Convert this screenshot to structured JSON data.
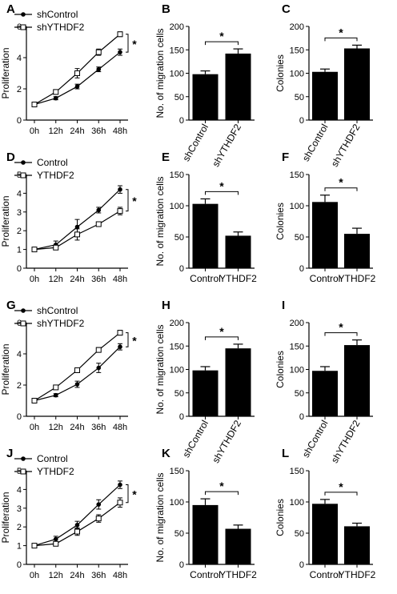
{
  "figure": {
    "panels": [
      {
        "letter": "A",
        "kind": "line"
      },
      {
        "letter": "B",
        "kind": "bar"
      },
      {
        "letter": "C",
        "kind": "bar"
      },
      {
        "letter": "D",
        "kind": "line"
      },
      {
        "letter": "E",
        "kind": "bar"
      },
      {
        "letter": "F",
        "kind": "bar"
      },
      {
        "letter": "G",
        "kind": "line"
      },
      {
        "letter": "H",
        "kind": "bar"
      },
      {
        "letter": "I",
        "kind": "bar"
      },
      {
        "letter": "J",
        "kind": "line"
      },
      {
        "letter": "K",
        "kind": "bar"
      },
      {
        "letter": "L",
        "kind": "bar"
      }
    ]
  },
  "chart_data": [
    {
      "panel": "A",
      "type": "line",
      "xlabel": "",
      "ylabel": "Proliferation",
      "x": [
        "0h",
        "12h",
        "24h",
        "36h",
        "48h"
      ],
      "ylim": [
        0,
        6
      ],
      "yticks": [
        0,
        2,
        4,
        6
      ],
      "series": [
        {
          "name": "shControl",
          "marker": "filled-circle",
          "values": [
            1.0,
            1.4,
            2.15,
            3.25,
            4.35
          ],
          "errors": [
            0.05,
            0.1,
            0.15,
            0.15,
            0.2
          ]
        },
        {
          "name": "shYTHDF2",
          "marker": "open-square",
          "values": [
            1.0,
            1.8,
            3.0,
            4.35,
            5.5
          ],
          "errors": [
            0.05,
            0.15,
            0.3,
            0.2,
            0.15
          ]
        }
      ],
      "annotation": "*",
      "legend": "top-left",
      "grid": false
    },
    {
      "panel": "B",
      "type": "bar",
      "xlabel": "",
      "ylabel": "No. of migration cells",
      "categories": [
        "shControl",
        "shYTHDF2"
      ],
      "values": [
        98,
        142
      ],
      "errors": [
        7,
        10
      ],
      "ylim": [
        0,
        200
      ],
      "yticks": [
        0,
        50,
        100,
        150,
        200
      ],
      "significance": "*",
      "tick_rotation": -60,
      "grid": false
    },
    {
      "panel": "C",
      "type": "bar",
      "xlabel": "",
      "ylabel": "Colonies",
      "categories": [
        "shControl",
        "shYTHDF2"
      ],
      "values": [
        103,
        153
      ],
      "errors": [
        6,
        7
      ],
      "ylim": [
        0,
        200
      ],
      "yticks": [
        0,
        50,
        100,
        150,
        200
      ],
      "significance": "*",
      "tick_rotation": -60,
      "grid": false
    },
    {
      "panel": "D",
      "type": "line",
      "xlabel": "",
      "ylabel": "Proliferation",
      "x": [
        "0h",
        "12h",
        "24h",
        "36h",
        "48h"
      ],
      "ylim": [
        0,
        5
      ],
      "yticks": [
        0,
        1,
        2,
        3,
        4,
        5
      ],
      "series": [
        {
          "name": "Control",
          "marker": "filled-circle",
          "values": [
            1.0,
            1.25,
            2.2,
            3.1,
            4.2
          ],
          "errors": [
            0.05,
            0.2,
            0.4,
            0.15,
            0.2
          ]
        },
        {
          "name": "YTHDF2",
          "marker": "open-square",
          "values": [
            1.0,
            1.1,
            1.8,
            2.35,
            3.05
          ],
          "errors": [
            0.05,
            0.1,
            0.3,
            0.1,
            0.2
          ]
        }
      ],
      "annotation": "*",
      "legend": "top-left",
      "grid": false
    },
    {
      "panel": "E",
      "type": "bar",
      "xlabel": "",
      "ylabel": "No. of migration cells",
      "categories": [
        "Control",
        "YTHDF2"
      ],
      "values": [
        103,
        52
      ],
      "errors": [
        8,
        6
      ],
      "ylim": [
        0,
        150
      ],
      "yticks": [
        0,
        50,
        100,
        150
      ],
      "significance": "*",
      "tick_rotation": 0,
      "grid": false
    },
    {
      "panel": "F",
      "type": "bar",
      "xlabel": "",
      "ylabel": "Colonies",
      "categories": [
        "Control",
        "YTHDF2"
      ],
      "values": [
        106,
        55
      ],
      "errors": [
        11,
        9
      ],
      "ylim": [
        0,
        150
      ],
      "yticks": [
        0,
        50,
        100,
        150
      ],
      "significance": "*",
      "tick_rotation": 0,
      "grid": false
    },
    {
      "panel": "G",
      "type": "line",
      "xlabel": "",
      "ylabel": "Proliferation",
      "x": [
        "0h",
        "12h",
        "24h",
        "36h",
        "48h"
      ],
      "ylim": [
        0,
        6
      ],
      "yticks": [
        0,
        2,
        4,
        6
      ],
      "series": [
        {
          "name": "shControl",
          "marker": "filled-circle",
          "values": [
            1.0,
            1.35,
            2.05,
            3.1,
            4.45
          ],
          "errors": [
            0.05,
            0.1,
            0.2,
            0.3,
            0.2
          ]
        },
        {
          "name": "shYTHDF2",
          "marker": "open-square",
          "values": [
            1.0,
            1.85,
            2.95,
            4.25,
            5.35
          ],
          "errors": [
            0.05,
            0.1,
            0.15,
            0.15,
            0.15
          ]
        }
      ],
      "annotation": "*",
      "legend": "top-left",
      "grid": false
    },
    {
      "panel": "H",
      "type": "bar",
      "xlabel": "",
      "ylabel": "No. of migration cells",
      "categories": [
        "shControl",
        "shYTHDF2"
      ],
      "values": [
        98,
        145
      ],
      "errors": [
        8,
        9
      ],
      "ylim": [
        0,
        200
      ],
      "yticks": [
        0,
        50,
        100,
        150,
        200
      ],
      "significance": "*",
      "tick_rotation": -60,
      "grid": false
    },
    {
      "panel": "I",
      "type": "bar",
      "xlabel": "",
      "ylabel": "Colonies",
      "categories": [
        "shControl",
        "shYTHDF2"
      ],
      "values": [
        97,
        152
      ],
      "errors": [
        9,
        11
      ],
      "ylim": [
        0,
        200
      ],
      "yticks": [
        0,
        50,
        100,
        150,
        200
      ],
      "significance": "*",
      "tick_rotation": -60,
      "grid": false
    },
    {
      "panel": "J",
      "type": "line",
      "xlabel": "",
      "ylabel": "Proliferation",
      "x": [
        "0h",
        "12h",
        "24h",
        "36h",
        "48h"
      ],
      "ylim": [
        0,
        5
      ],
      "yticks": [
        0,
        1,
        2,
        3,
        4,
        5
      ],
      "series": [
        {
          "name": "Control",
          "marker": "filled-circle",
          "values": [
            1.0,
            1.35,
            2.1,
            3.2,
            4.25
          ],
          "errors": [
            0.05,
            0.15,
            0.2,
            0.25,
            0.2
          ]
        },
        {
          "name": "YTHDF2",
          "marker": "open-square",
          "values": [
            1.0,
            1.1,
            1.75,
            2.45,
            3.3
          ],
          "errors": [
            0.05,
            0.1,
            0.2,
            0.2,
            0.25
          ]
        }
      ],
      "annotation": "*",
      "legend": "top-left",
      "grid": false
    },
    {
      "panel": "K",
      "type": "bar",
      "xlabel": "",
      "ylabel": "No. of migration cells",
      "categories": [
        "Control",
        "YTHDF2"
      ],
      "values": [
        95,
        57
      ],
      "errors": [
        10,
        6
      ],
      "ylim": [
        0,
        150
      ],
      "yticks": [
        0,
        50,
        100,
        150
      ],
      "significance": "*",
      "tick_rotation": 0,
      "grid": false
    },
    {
      "panel": "L",
      "type": "bar",
      "xlabel": "",
      "ylabel": "Colonies",
      "categories": [
        "Control",
        "YTHDF2"
      ],
      "values": [
        97,
        61
      ],
      "errors": [
        7,
        5
      ],
      "ylim": [
        0,
        150
      ],
      "yticks": [
        0,
        50,
        100,
        150
      ],
      "significance": "*",
      "tick_rotation": 0,
      "grid": false
    }
  ]
}
